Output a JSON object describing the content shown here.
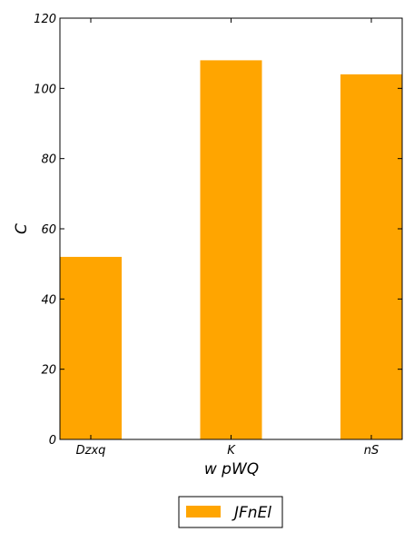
{
  "chart_data": {
    "type": "bar",
    "categories": [
      "Dzxq",
      "K",
      "nS"
    ],
    "series": [
      {
        "name": "JFnEl",
        "values": [
          52,
          108,
          104
        ],
        "color": "#ffa500"
      }
    ],
    "xlabel": "w pWQ",
    "ylabel": "C",
    "ylim": [
      0,
      120
    ],
    "yticks": [
      0,
      20,
      40,
      60,
      80,
      100,
      120
    ],
    "grid": false,
    "legend_position": "bottom-center"
  }
}
